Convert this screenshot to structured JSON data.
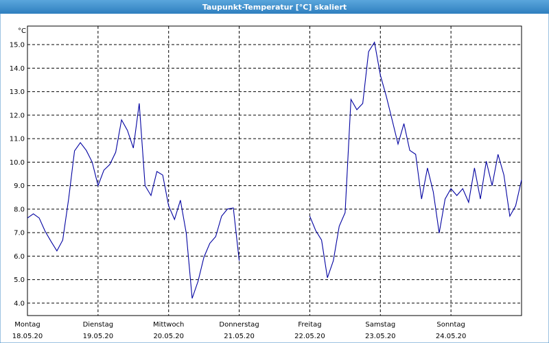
{
  "chart_data": {
    "type": "line",
    "title": "Taupunkt-Temperatur [°C] skaliert",
    "unit_label": "°C",
    "days": [
      {
        "name": "Montag",
        "date": "18.05.20"
      },
      {
        "name": "Dienstag",
        "date": "19.05.20"
      },
      {
        "name": "Mittwoch",
        "date": "20.05.20"
      },
      {
        "name": "Donnerstag",
        "date": "21.05.20"
      },
      {
        "name": "Freitag",
        "date": "22.05.20"
      },
      {
        "name": "Samstag",
        "date": "23.05.20"
      },
      {
        "name": "Sonntag",
        "date": "24.05.20"
      }
    ],
    "points_per_day": 12,
    "xlim": [
      0,
      7
    ],
    "ylim": [
      3.47,
      15.79
    ],
    "yticks": [
      {
        "value": 4,
        "label": "4.0"
      },
      {
        "value": 5,
        "label": "5.0"
      },
      {
        "value": 6,
        "label": "6.0"
      },
      {
        "value": 7,
        "label": "7.0"
      },
      {
        "value": 8,
        "label": "8.0"
      },
      {
        "value": 9,
        "label": "9.0"
      },
      {
        "value": 10,
        "label": "10.0"
      },
      {
        "value": 11,
        "label": "11.0"
      },
      {
        "value": 12,
        "label": "12.0"
      },
      {
        "value": 13,
        "label": "13.0"
      },
      {
        "value": 14,
        "label": "14.0"
      },
      {
        "value": 15,
        "label": "15.0"
      }
    ],
    "grid": true,
    "color": "#0000a0",
    "values": [
      7.62,
      7.8,
      7.62,
      7.06,
      6.63,
      6.22,
      6.68,
      8.43,
      10.48,
      10.83,
      10.5,
      10.0,
      9.0,
      9.66,
      9.9,
      10.42,
      11.8,
      11.35,
      10.6,
      12.5,
      9.0,
      8.58,
      9.6,
      9.45,
      8.14,
      7.56,
      8.38,
      6.98,
      4.2,
      4.93,
      5.95,
      6.54,
      6.83,
      7.7,
      8.0,
      8.05,
      5.8,
      null,
      null,
      null,
      null,
      null,
      null,
      null,
      null,
      null,
      null,
      null,
      7.7,
      7.09,
      6.68,
      5.08,
      5.8,
      7.27,
      7.85,
      12.67,
      12.23,
      12.5,
      14.7,
      15.1,
      13.7,
      12.8,
      11.8,
      10.77,
      11.64,
      10.5,
      10.33,
      8.43,
      9.75,
      8.73,
      6.98,
      8.43,
      8.87,
      8.58,
      8.87,
      8.29,
      9.75,
      8.43,
      10.04,
      9.0,
      10.33,
      9.45,
      7.7,
      8.14,
      9.25
    ]
  }
}
